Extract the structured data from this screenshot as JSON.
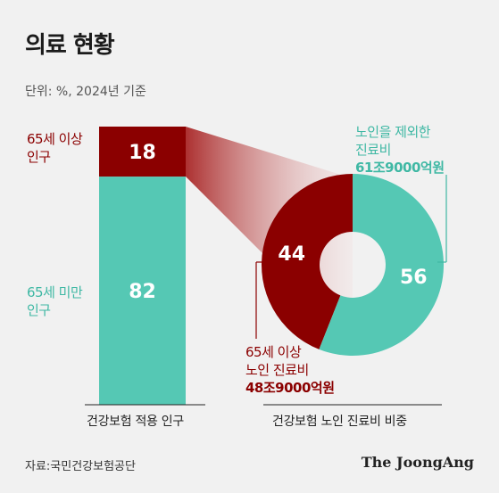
{
  "title": "의료 현황",
  "unit": "단위: %, 2024년 기준",
  "colors": {
    "red": "#8b0000",
    "teal": "#55c8b4",
    "funnel": "#c97a7a"
  },
  "labels": {
    "bar_top_line1": "65세 이상",
    "bar_top_line2": "인구",
    "bar_bottom_line1": "65세 미만",
    "bar_bottom_line2": "인구",
    "donut_right_line1": "노인을 제외한",
    "donut_right_line2": "진료비",
    "donut_right_amount": "61조9000억원",
    "donut_left_line1": "65세 이상",
    "donut_left_line2": "노인 진료비",
    "donut_left_amount": "48조9000억원"
  },
  "chart_data": [
    {
      "type": "bar",
      "xlabel": "건강보험 적용 인구",
      "categories": [
        "65세 이상 인구",
        "65세 미만 인구"
      ],
      "values": [
        18,
        82
      ],
      "stacked": true
    },
    {
      "type": "pie",
      "xlabel": "건강보험 노인 진료비 비중",
      "categories": [
        "65세 이상 노인 진료비",
        "노인을 제외한 진료비"
      ],
      "values": [
        44,
        56
      ]
    }
  ],
  "footer": {
    "source": "자료:국민건강보험공단",
    "brand": "The JoongAng"
  }
}
